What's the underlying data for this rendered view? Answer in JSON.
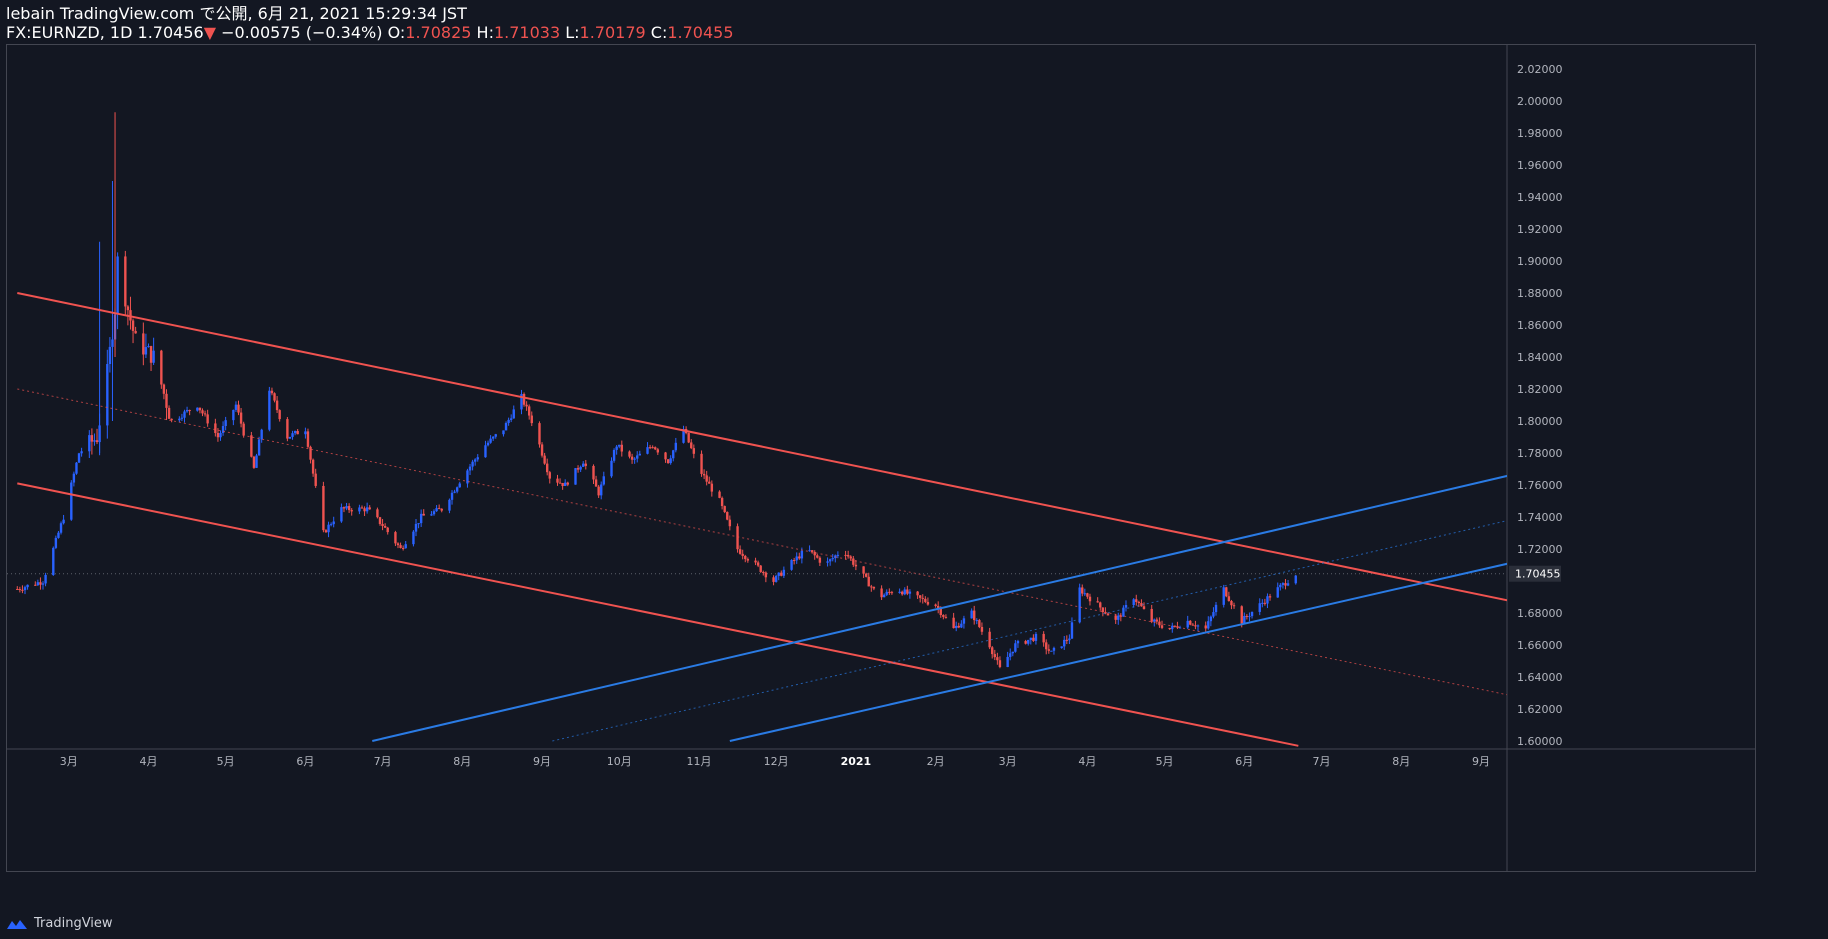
{
  "header": {
    "line1": "lebain TradingView.com で公開, 6月 21, 2021 15:29:34 JST",
    "symbol": "FX:EURNZD, 1D",
    "last": "1.70456",
    "arrow": "▼",
    "change": "−0.00575 (−0.34%)",
    "o_label": "O:",
    "o_val": "1.70825",
    "h_label": "H:",
    "h_val": "1.71033",
    "l_label": "L:",
    "l_val": "1.70179",
    "c_label": "C:",
    "c_val": "1.70455"
  },
  "footer": {
    "brand": "TradingView"
  },
  "colors": {
    "bg": "#131722",
    "up": "#2962ff",
    "down": "#ef5350",
    "red_line": "#f05350",
    "blue_line": "#2a7be4"
  },
  "chart_data": {
    "type": "candlestick",
    "ylim": [
      1.595,
      2.035
    ],
    "y_ticks": [
      "2.02000",
      "2.00000",
      "1.98000",
      "1.96000",
      "1.94000",
      "1.92000",
      "1.90000",
      "1.88000",
      "1.86000",
      "1.84000",
      "1.82000",
      "1.80000",
      "1.78000",
      "1.76000",
      "1.74000",
      "1.72000",
      "1.70455",
      "1.68000",
      "1.66000",
      "1.64000",
      "1.62000",
      "1.60000"
    ],
    "current_price": 1.70455,
    "x_ticks": [
      "3月",
      "4月",
      "5月",
      "6月",
      "7月",
      "8月",
      "9月",
      "10月",
      "11月",
      "12月",
      "2021",
      "2月",
      "3月",
      "4月",
      "5月",
      "6月",
      "7月",
      "8月",
      "9月"
    ],
    "anchors": [
      {
        "date": "2020-02-10",
        "price": 1.695
      },
      {
        "date": "2020-02-20",
        "price": 1.7
      },
      {
        "date": "2020-02-28",
        "price": 1.74
      },
      {
        "date": "2020-03-05",
        "price": 1.78
      },
      {
        "date": "2020-03-12",
        "price": 1.79
      },
      {
        "date": "2020-03-16",
        "price": 1.83
      },
      {
        "date": "2020-03-19",
        "price": 1.87
      },
      {
        "date": "2020-03-20",
        "price": 1.9
      },
      {
        "date": "2020-03-24",
        "price": 1.87
      },
      {
        "date": "2020-03-27",
        "price": 1.85
      },
      {
        "date": "2020-04-03",
        "price": 1.84
      },
      {
        "date": "2020-04-10",
        "price": 1.8
      },
      {
        "date": "2020-04-20",
        "price": 1.81
      },
      {
        "date": "2020-04-28",
        "price": 1.79
      },
      {
        "date": "2020-05-05",
        "price": 1.81
      },
      {
        "date": "2020-05-12",
        "price": 1.77
      },
      {
        "date": "2020-05-18",
        "price": 1.82
      },
      {
        "date": "2020-05-25",
        "price": 1.79
      },
      {
        "date": "2020-06-01",
        "price": 1.795
      },
      {
        "date": "2020-06-08",
        "price": 1.73
      },
      {
        "date": "2020-06-15",
        "price": 1.745
      },
      {
        "date": "2020-06-25",
        "price": 1.745
      },
      {
        "date": "2020-07-01",
        "price": 1.735
      },
      {
        "date": "2020-07-08",
        "price": 1.72
      },
      {
        "date": "2020-07-16",
        "price": 1.74
      },
      {
        "date": "2020-07-24",
        "price": 1.745
      },
      {
        "date": "2020-08-01",
        "price": 1.765
      },
      {
        "date": "2020-08-10",
        "price": 1.785
      },
      {
        "date": "2020-08-17",
        "price": 1.795
      },
      {
        "date": "2020-08-24",
        "price": 1.815
      },
      {
        "date": "2020-08-28",
        "price": 1.8
      },
      {
        "date": "2020-09-04",
        "price": 1.765
      },
      {
        "date": "2020-09-10",
        "price": 1.76
      },
      {
        "date": "2020-09-17",
        "price": 1.775
      },
      {
        "date": "2020-09-23",
        "price": 1.755
      },
      {
        "date": "2020-09-30",
        "price": 1.785
      },
      {
        "date": "2020-10-06",
        "price": 1.775
      },
      {
        "date": "2020-10-14",
        "price": 1.785
      },
      {
        "date": "2020-10-20",
        "price": 1.775
      },
      {
        "date": "2020-10-26",
        "price": 1.795
      },
      {
        "date": "2020-11-01",
        "price": 1.77
      },
      {
        "date": "2020-11-09",
        "price": 1.75
      },
      {
        "date": "2020-11-16",
        "price": 1.72
      },
      {
        "date": "2020-11-23",
        "price": 1.71
      },
      {
        "date": "2020-11-30",
        "price": 1.7
      },
      {
        "date": "2020-12-06",
        "price": 1.71
      },
      {
        "date": "2020-12-13",
        "price": 1.72
      },
      {
        "date": "2020-12-20",
        "price": 1.71
      },
      {
        "date": "2020-12-27",
        "price": 1.72
      },
      {
        "date": "2021-01-03",
        "price": 1.705
      },
      {
        "date": "2021-01-10",
        "price": 1.69
      },
      {
        "date": "2021-01-17",
        "price": 1.695
      },
      {
        "date": "2021-01-24",
        "price": 1.69
      },
      {
        "date": "2021-02-01",
        "price": 1.685
      },
      {
        "date": "2021-02-08",
        "price": 1.67
      },
      {
        "date": "2021-02-15",
        "price": 1.68
      },
      {
        "date": "2021-02-22",
        "price": 1.66
      },
      {
        "date": "2021-02-26",
        "price": 1.645
      },
      {
        "date": "2021-03-04",
        "price": 1.66
      },
      {
        "date": "2021-03-12",
        "price": 1.665
      },
      {
        "date": "2021-03-18",
        "price": 1.655
      },
      {
        "date": "2021-03-25",
        "price": 1.665
      },
      {
        "date": "2021-03-29",
        "price": 1.695
      },
      {
        "date": "2021-04-05",
        "price": 1.685
      },
      {
        "date": "2021-04-12",
        "price": 1.675
      },
      {
        "date": "2021-04-19",
        "price": 1.69
      },
      {
        "date": "2021-04-26",
        "price": 1.675
      },
      {
        "date": "2021-05-03",
        "price": 1.67
      },
      {
        "date": "2021-05-10",
        "price": 1.675
      },
      {
        "date": "2021-05-17",
        "price": 1.67
      },
      {
        "date": "2021-05-24",
        "price": 1.695
      },
      {
        "date": "2021-05-31",
        "price": 1.675
      },
      {
        "date": "2021-06-07",
        "price": 1.685
      },
      {
        "date": "2021-06-14",
        "price": 1.695
      },
      {
        "date": "2021-06-21",
        "price": 1.7045
      }
    ],
    "trend_lines": [
      {
        "name": "red-upper",
        "color": "#f05350",
        "width": 2,
        "p1": {
          "date": "2020-02-10",
          "price": 1.88
        },
        "p2": {
          "date": "2021-09-20",
          "price": 1.685
        }
      },
      {
        "name": "red-lower",
        "color": "#f05350",
        "width": 2,
        "p1": {
          "date": "2020-02-10",
          "price": 1.761
        },
        "p2": {
          "date": "2021-06-22",
          "price": 1.597
        }
      },
      {
        "name": "red-mid",
        "color": "#f05350",
        "width": 1,
        "dash": "2 3",
        "p1": {
          "date": "2020-02-10",
          "price": 1.82
        },
        "p2": {
          "date": "2021-09-20",
          "price": 1.626
        }
      },
      {
        "name": "blue-upper",
        "color": "#2a7be4",
        "width": 2,
        "p1": {
          "date": "2020-06-27",
          "price": 1.6
        },
        "p2": {
          "date": "2021-09-20",
          "price": 1.769
        }
      },
      {
        "name": "blue-lower",
        "color": "#2a7be4",
        "width": 2,
        "p1": {
          "date": "2020-11-13",
          "price": 1.6
        },
        "p2": {
          "date": "2021-09-20",
          "price": 1.714
        }
      },
      {
        "name": "blue-mid",
        "color": "#2a7be4",
        "width": 1,
        "dash": "2 3",
        "p1": {
          "date": "2020-09-05",
          "price": 1.6
        },
        "p2": {
          "date": "2021-09-20",
          "price": 1.741
        }
      }
    ]
  }
}
